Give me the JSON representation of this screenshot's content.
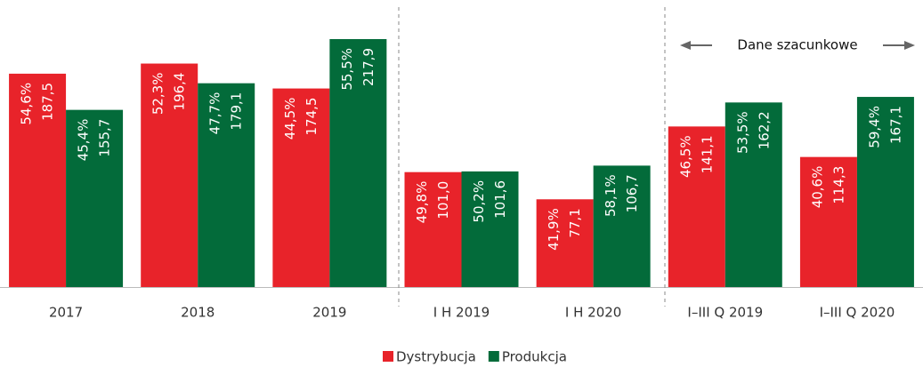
{
  "chart_data": {
    "type": "bar",
    "annotation": "Dane szacunkowe",
    "categories": [
      "2017",
      "2018",
      "2019",
      "I H 2019",
      "I H 2020",
      "I–III Q 2019",
      "I–III Q 2020"
    ],
    "series": [
      {
        "name": "Dystrybucja",
        "color": "#e8232a",
        "values": [
          187.5,
          196.4,
          174.5,
          101.0,
          77.1,
          141.1,
          114.3
        ],
        "value_labels": [
          "187,5",
          "196,4",
          "174,5",
          "101,0",
          "77,1",
          "141,1",
          "114,3"
        ],
        "shares": [
          54.6,
          52.3,
          44.5,
          49.8,
          41.9,
          46.5,
          40.6
        ],
        "share_labels": [
          "54,6%",
          "52,3%",
          "44,5%",
          "49,8%",
          "41,9%",
          "46,5%",
          "40,6%"
        ]
      },
      {
        "name": "Produkcja",
        "color": "#036b3a",
        "values": [
          155.7,
          179.1,
          217.9,
          101.6,
          106.7,
          162.2,
          167.1
        ],
        "value_labels": [
          "155,7",
          "179,1",
          "217,9",
          "101,6",
          "106,7",
          "162,2",
          "167,1"
        ],
        "shares": [
          45.4,
          47.7,
          55.5,
          50.2,
          58.1,
          53.5,
          59.4
        ],
        "share_labels": [
          "45,4%",
          "47,7%",
          "55,5%",
          "50,2%",
          "58,1%",
          "53,5%",
          "59,4%"
        ]
      }
    ],
    "legend": "bottom"
  }
}
